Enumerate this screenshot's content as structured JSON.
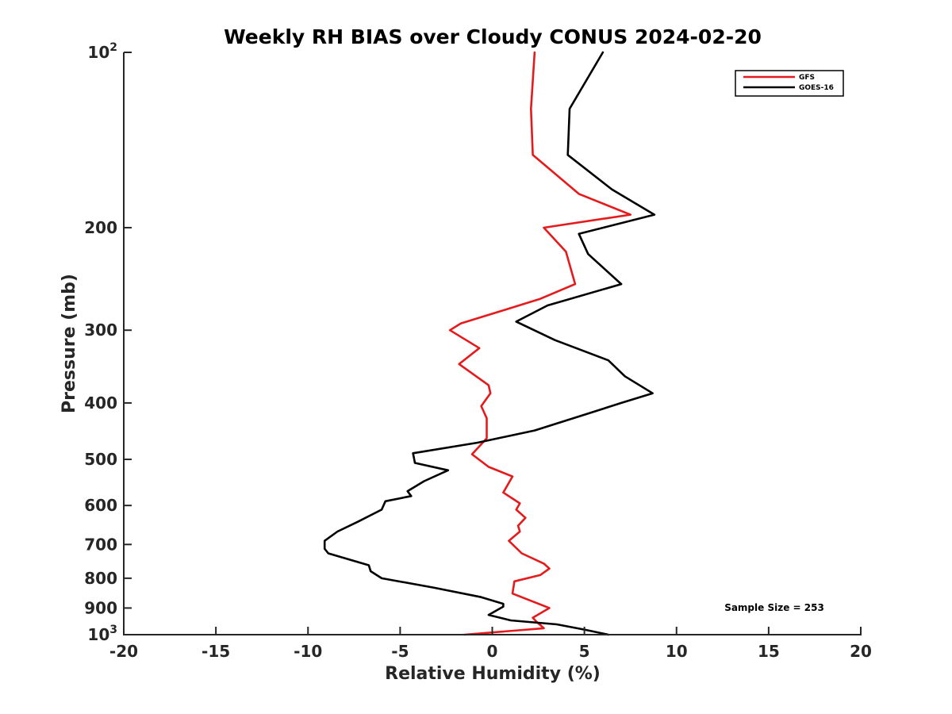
{
  "chart_data": {
    "type": "line",
    "title": "Weekly RH BIAS over Cloudy CONUS 2024-02-20",
    "xlabel": "Relative Humidity (%)",
    "ylabel": "Pressure (mb)",
    "xlim": [
      -20,
      20
    ],
    "ylim": [
      1000,
      100
    ],
    "y_scale": "log",
    "x_ticks": [
      -20,
      -15,
      -10,
      -5,
      0,
      5,
      10,
      15,
      20
    ],
    "x_tick_labels": [
      "-20",
      "-15",
      "-10",
      "-5",
      "0",
      "5",
      "10",
      "15",
      "20"
    ],
    "y_ticks": [
      {
        "value": 100,
        "label": "10",
        "sup": "2"
      },
      {
        "value": 200,
        "label": "200"
      },
      {
        "value": 300,
        "label": "300"
      },
      {
        "value": 400,
        "label": "400"
      },
      {
        "value": 500,
        "label": "500"
      },
      {
        "value": 600,
        "label": "600"
      },
      {
        "value": 700,
        "label": "700"
      },
      {
        "value": 800,
        "label": "800"
      },
      {
        "value": 900,
        "label": "900"
      },
      {
        "value": 1000,
        "label": "10",
        "sup": "3"
      }
    ],
    "grid": false,
    "legend_position": "top-right",
    "annotation": "Sample Size = 253",
    "series": [
      {
        "name": "GFS",
        "color": "#e41a1c",
        "points": [
          [
            2.3,
            100
          ],
          [
            2.1,
            125
          ],
          [
            2.2,
            150
          ],
          [
            4.7,
            175
          ],
          [
            7.5,
            190
          ],
          [
            2.8,
            200
          ],
          [
            4.0,
            220
          ],
          [
            4.5,
            250
          ],
          [
            2.6,
            265
          ],
          [
            0.5,
            278
          ],
          [
            -1.7,
            292
          ],
          [
            -2.3,
            300
          ],
          [
            -0.7,
            322
          ],
          [
            -1.8,
            343
          ],
          [
            -0.2,
            373
          ],
          [
            -0.1,
            385
          ],
          [
            -0.6,
            405
          ],
          [
            -0.3,
            425
          ],
          [
            -0.3,
            460
          ],
          [
            -1.1,
            490
          ],
          [
            -0.2,
            515
          ],
          [
            1.1,
            535
          ],
          [
            0.6,
            570
          ],
          [
            1.5,
            595
          ],
          [
            1.3,
            610
          ],
          [
            1.8,
            630
          ],
          [
            1.4,
            650
          ],
          [
            1.5,
            665
          ],
          [
            0.9,
            690
          ],
          [
            1.6,
            725
          ],
          [
            2.8,
            755
          ],
          [
            3.1,
            770
          ],
          [
            2.6,
            790
          ],
          [
            1.2,
            810
          ],
          [
            1.1,
            850
          ],
          [
            3.1,
            900
          ],
          [
            2.2,
            935
          ],
          [
            2.4,
            950
          ],
          [
            2.8,
            975
          ],
          [
            -1.5,
            1000
          ]
        ]
      },
      {
        "name": "GOES-16",
        "color": "#000000",
        "points": [
          [
            6.0,
            100
          ],
          [
            4.2,
            125
          ],
          [
            4.1,
            150
          ],
          [
            6.5,
            172
          ],
          [
            8.8,
            190
          ],
          [
            4.7,
            205
          ],
          [
            5.2,
            222
          ],
          [
            7.0,
            250
          ],
          [
            3.0,
            272
          ],
          [
            1.3,
            290
          ],
          [
            3.4,
            312
          ],
          [
            6.3,
            338
          ],
          [
            7.2,
            360
          ],
          [
            8.7,
            385
          ],
          [
            7.0,
            400
          ],
          [
            4.9,
            420
          ],
          [
            2.3,
            446
          ],
          [
            -0.8,
            468
          ],
          [
            -4.3,
            488
          ],
          [
            -4.2,
            507
          ],
          [
            -2.4,
            522
          ],
          [
            -3.7,
            545
          ],
          [
            -4.6,
            567
          ],
          [
            -4.4,
            578
          ],
          [
            -5.8,
            590
          ],
          [
            -6.0,
            610
          ],
          [
            -7.3,
            640
          ],
          [
            -8.4,
            665
          ],
          [
            -9.1,
            690
          ],
          [
            -9.1,
            712
          ],
          [
            -8.9,
            725
          ],
          [
            -6.7,
            760
          ],
          [
            -6.6,
            778
          ],
          [
            -6.0,
            800
          ],
          [
            -3.2,
            830
          ],
          [
            -0.6,
            862
          ],
          [
            0.6,
            885
          ],
          [
            0.6,
            895
          ],
          [
            -0.2,
            925
          ],
          [
            1.0,
            945
          ],
          [
            3.5,
            960
          ],
          [
            5.0,
            980
          ],
          [
            6.3,
            1000
          ]
        ]
      }
    ]
  }
}
